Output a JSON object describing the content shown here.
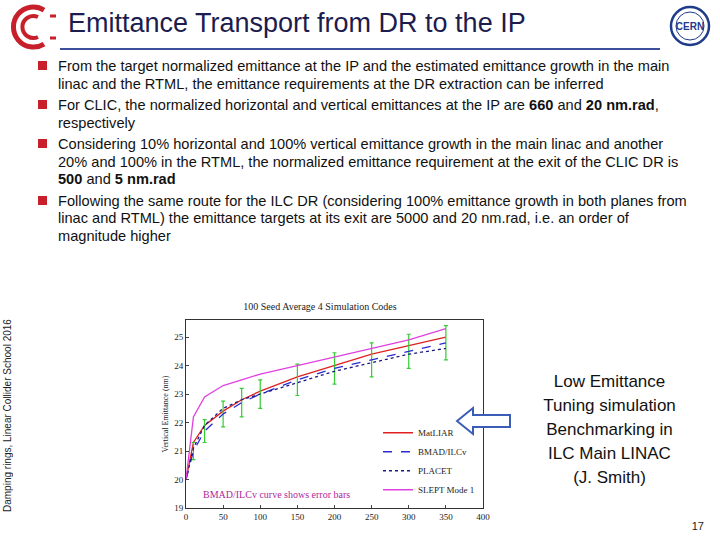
{
  "header": {
    "title": "Emittance Transport from DR to the IP",
    "logo_text": "CERN"
  },
  "bullets": [
    [
      {
        "text": "From the target normalized emittance at the IP and the estimated emittance growth in the main linac and the RTML, the emittance requirements at the DR extraction can be inferred",
        "bold": false
      }
    ],
    [
      {
        "text": "For CLIC, the normalized horizontal and vertical  emittances at the IP are ",
        "bold": false
      },
      {
        "text": "660",
        "bold": true
      },
      {
        "text": " and ",
        "bold": false
      },
      {
        "text": "20 nm.rad",
        "bold": true
      },
      {
        "text": ", respectively",
        "bold": false
      }
    ],
    [
      {
        "text": "Considering 10% horizontal and 100% vertical emittance growth in the main linac and another 20% and 100% in the RTML, the normalized emittance requirement at the exit of the CLIC DR is ",
        "bold": false
      },
      {
        "text": "500",
        "bold": true
      },
      {
        "text": " and ",
        "bold": false
      },
      {
        "text": "5 nm.rad",
        "bold": true
      }
    ],
    [
      {
        "text": "Following the same route for the ILC DR (considering 100% emittance growth in both planes from linac and RTML) the emittance targets at its exit are 5000 and 20 nm.rad, i.e. an order of magnitude higher",
        "bold": false
      }
    ]
  ],
  "side_text": "Damping rings, Linear Collider School 2016",
  "callout": [
    "Low Emittance",
    "Tuning simulation",
    "Benchmarking in",
    "ILC Main LINAC",
    "(J. Smith)"
  ],
  "page_number": "17",
  "chart_data": {
    "type": "line",
    "title": "100 Seed Average 4 Simulation Codes",
    "y_label": "Vertical Emittance (nm)",
    "annotation": "BMAD/ILCv curve shows error bars",
    "x": [
      0,
      10,
      25,
      50,
      75,
      100,
      150,
      200,
      250,
      300,
      350
    ],
    "series": [
      {
        "name": "MatLIAR",
        "color": "#e02020",
        "line_style": "solid",
        "values": [
          20,
          21.3,
          21.9,
          22.4,
          22.8,
          23.1,
          23.6,
          24.0,
          24.4,
          24.7,
          25.0
        ]
      },
      {
        "name": "BMAD/ILCv",
        "color": "#2a2ad0",
        "line_style": "dash",
        "values": [
          20,
          21.0,
          21.7,
          22.3,
          22.7,
          23.0,
          23.5,
          23.9,
          24.2,
          24.5,
          24.8
        ],
        "error": [
          0,
          0.3,
          0.4,
          0.45,
          0.5,
          0.5,
          0.55,
          0.55,
          0.6,
          0.6,
          0.6
        ]
      },
      {
        "name": "PLACET",
        "color": "#1a1a80",
        "line_style": "dot",
        "values": [
          20,
          21.1,
          21.9,
          22.5,
          22.8,
          23.0,
          23.4,
          23.8,
          24.1,
          24.4,
          24.6
        ]
      },
      {
        "name": "SLEPT Mode 1",
        "color": "#e040e0",
        "line_style": "solid",
        "values": [
          20,
          22.2,
          22.9,
          23.3,
          23.5,
          23.7,
          24.0,
          24.3,
          24.6,
          24.9,
          25.3
        ]
      }
    ],
    "xlim": [
      0,
      400
    ],
    "xticks": [
      0,
      50,
      100,
      150,
      200,
      250,
      300,
      350,
      400
    ],
    "ylim": [
      19,
      25.6
    ],
    "yticks": [
      19,
      20,
      21,
      22,
      23,
      24,
      25
    ],
    "grid": false,
    "legend": "lower right"
  }
}
